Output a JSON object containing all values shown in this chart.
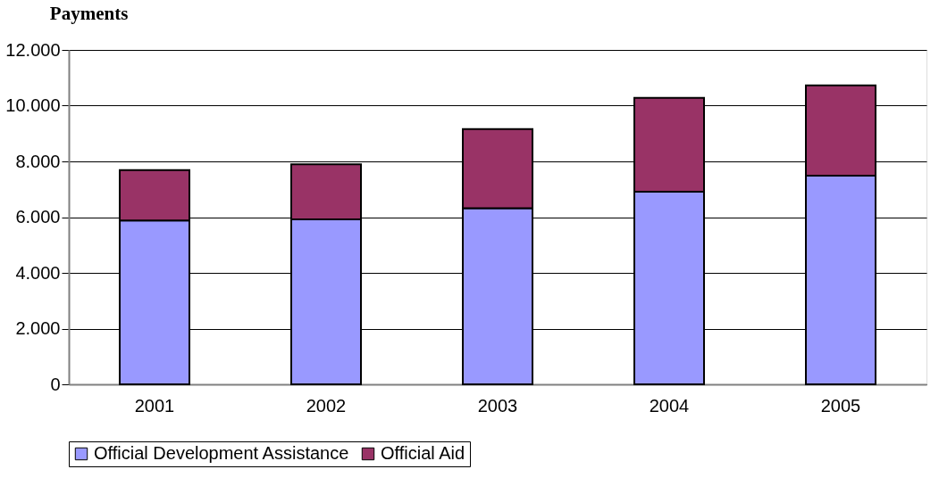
{
  "chart_data": {
    "type": "bar",
    "title": "Payments",
    "stacked": true,
    "categories": [
      "2001",
      "2002",
      "2003",
      "2004",
      "2005"
    ],
    "series": [
      {
        "name": "Official Development Assistance",
        "color": "#9999ff",
        "values": [
          5880,
          5920,
          6320,
          6910,
          7490
        ]
      },
      {
        "name": "Official Aid",
        "color": "#993366",
        "values": [
          1810,
          1980,
          2840,
          3370,
          3240
        ]
      }
    ],
    "ylim": [
      0,
      12000
    ],
    "yticks": [
      {
        "value": 0,
        "label": "0"
      },
      {
        "value": 2000,
        "label": "2.000"
      },
      {
        "value": 4000,
        "label": "4.000"
      },
      {
        "value": 6000,
        "label": "6.000"
      },
      {
        "value": 8000,
        "label": "8.000"
      },
      {
        "value": 10000,
        "label": "10.000"
      },
      {
        "value": 12000,
        "label": "12.000"
      }
    ],
    "grid": "y",
    "legend": "bottom"
  }
}
